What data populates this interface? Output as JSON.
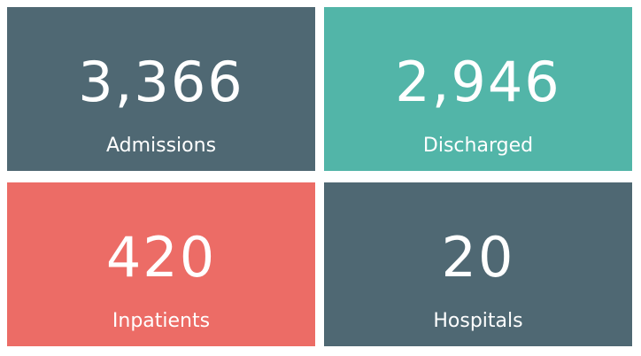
{
  "cards": [
    {
      "value": "3,366",
      "label": "Admissions",
      "color": "#4f6873"
    },
    {
      "value": "2,946",
      "label": "Discharged",
      "color": "#52b5a8"
    },
    {
      "value": "420",
      "label": "Inpatients",
      "color": "#ec6c66"
    },
    {
      "value": "20",
      "label": "Hospitals",
      "color": "#4f6873"
    }
  ]
}
